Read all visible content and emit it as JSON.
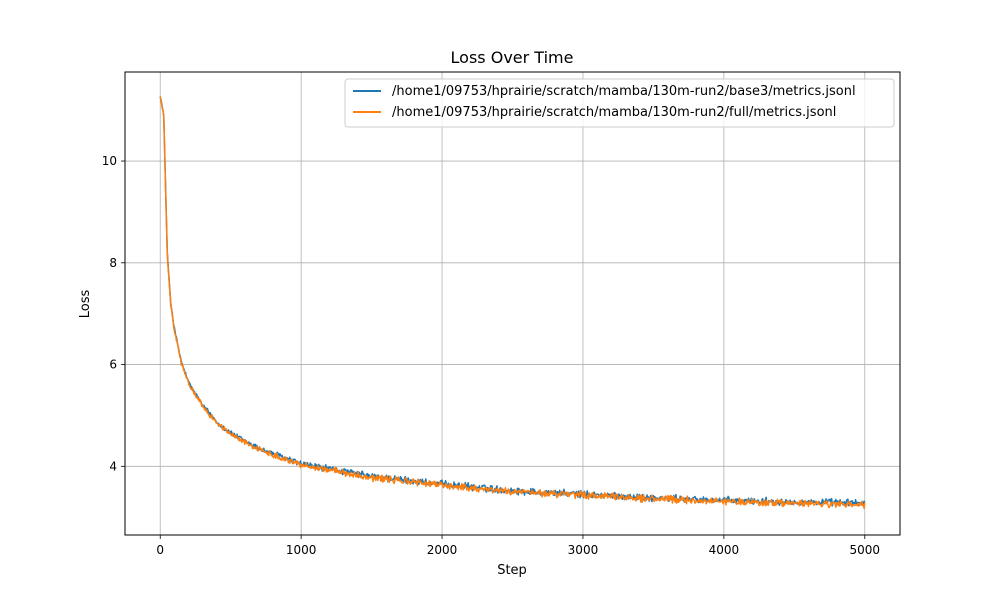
{
  "chart_data": {
    "type": "line",
    "title": "Loss Over Time",
    "xlabel": "Step",
    "ylabel": "Loss",
    "xlim": [
      -250,
      5250
    ],
    "ylim": [
      2.65,
      11.75
    ],
    "xticks": [
      0,
      1000,
      2000,
      3000,
      4000,
      5000
    ],
    "yticks": [
      4,
      6,
      8,
      10
    ],
    "grid": true,
    "legend_position": "top-right",
    "series": [
      {
        "name": "/home1/09753/hprairie/scratch/mamba/130m-run2/base3/metrics.jsonl",
        "color": "#1f77b4",
        "x": [
          0,
          25,
          50,
          75,
          100,
          150,
          200,
          300,
          400,
          500,
          700,
          1000,
          1500,
          2000,
          2500,
          3000,
          3500,
          4000,
          4500,
          5000
        ],
        "y": [
          11.28,
          10.9,
          8.2,
          7.2,
          6.7,
          6.05,
          5.65,
          5.2,
          4.88,
          4.65,
          4.35,
          4.05,
          3.8,
          3.65,
          3.52,
          3.45,
          3.38,
          3.33,
          3.3,
          3.28
        ]
      },
      {
        "name": "/home1/09753/hprairie/scratch/mamba/130m-run2/full/metrics.jsonl",
        "color": "#ff7f0e",
        "x": [
          0,
          25,
          50,
          75,
          100,
          150,
          200,
          300,
          400,
          500,
          700,
          1000,
          1500,
          2000,
          2500,
          3000,
          3500,
          4000,
          4500,
          5000
        ],
        "y": [
          11.28,
          10.88,
          8.15,
          7.18,
          6.68,
          6.03,
          5.63,
          5.18,
          4.86,
          4.63,
          4.33,
          4.03,
          3.78,
          3.63,
          3.5,
          3.43,
          3.36,
          3.31,
          3.27,
          3.24
        ]
      }
    ]
  }
}
